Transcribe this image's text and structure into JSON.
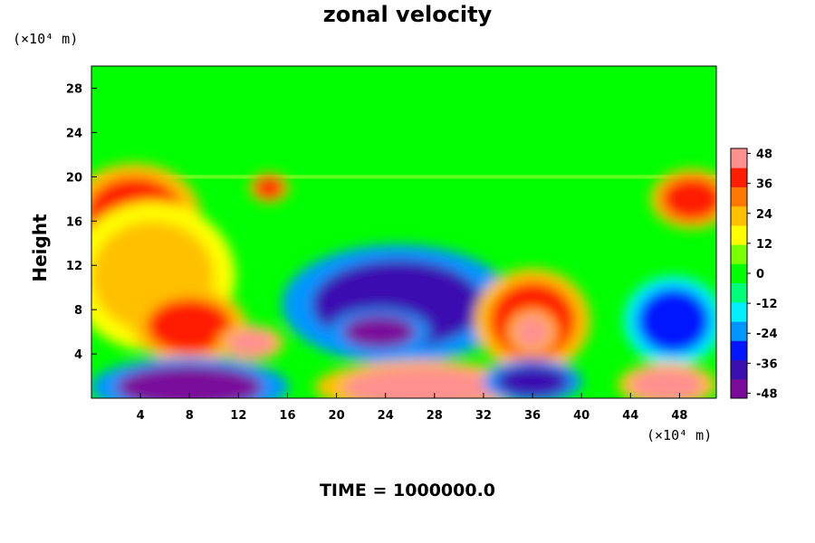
{
  "chart_data": {
    "type": "heatmap",
    "title": "zonal velocity",
    "ylabel": "Height",
    "y_unit": "(×10⁴ m)",
    "x_unit": "(×10⁴ m)",
    "footer": "TIME = 1000000.0",
    "xlim": [
      0,
      51
    ],
    "ylim": [
      0,
      30
    ],
    "x_ticks": [
      "4",
      "8",
      "12",
      "16",
      "20",
      "24",
      "28",
      "32",
      "36",
      "40",
      "44",
      "48"
    ],
    "x_tick_values": [
      4,
      8,
      12,
      16,
      20,
      24,
      28,
      32,
      36,
      40,
      44,
      48
    ],
    "y_ticks": [
      "4",
      "8",
      "12",
      "16",
      "20",
      "24",
      "28"
    ],
    "y_tick_values": [
      4,
      8,
      12,
      16,
      20,
      24,
      28
    ],
    "colorbar": {
      "ticks": [
        "48",
        "36",
        "24",
        "12",
        "0",
        "-12",
        "-24",
        "-36",
        "-48"
      ],
      "tick_values": [
        48,
        36,
        24,
        12,
        0,
        -12,
        -24,
        -36,
        -48
      ],
      "range": [
        -50,
        50
      ],
      "colors_low_to_high": [
        "#7a0a9a",
        "#3a10b0",
        "#0016ff",
        "#0096ff",
        "#00f0ff",
        "#00ff78",
        "#00ff00",
        "#78ff00",
        "#ffff00",
        "#ffc000",
        "#ff7800",
        "#ff1e00",
        "#ff9090"
      ]
    },
    "features": [
      {
        "kind": "ellipse",
        "cx": 3.5,
        "cy": 16.5,
        "rx": 4,
        "ry": 3.5,
        "value": 44
      },
      {
        "kind": "ellipse",
        "cx": 5,
        "cy": 11,
        "rx": 5,
        "ry": 5,
        "value": 28
      },
      {
        "kind": "ellipse",
        "cx": 8,
        "cy": 6.5,
        "rx": 3.5,
        "ry": 2.5,
        "value": 38
      },
      {
        "kind": "ellipse",
        "cx": 13,
        "cy": 5,
        "rx": 2,
        "ry": 1.2,
        "value": 48
      },
      {
        "kind": "ellipse",
        "cx": 14.5,
        "cy": 19,
        "rx": 1.2,
        "ry": 1,
        "value": 40
      },
      {
        "kind": "ellipse",
        "cx": 25,
        "cy": 8.5,
        "rx": 7,
        "ry": 4,
        "value": -38
      },
      {
        "kind": "ellipse",
        "cx": 23.5,
        "cy": 6,
        "rx": 3,
        "ry": 1.5,
        "value": -48
      },
      {
        "kind": "ellipse",
        "cx": 36,
        "cy": 7,
        "rx": 3.5,
        "ry": 3.5,
        "value": 40
      },
      {
        "kind": "ellipse",
        "cx": 36,
        "cy": 6,
        "rx": 1.5,
        "ry": 1.5,
        "value": 48
      },
      {
        "kind": "ellipse",
        "cx": 47.5,
        "cy": 7,
        "rx": 3,
        "ry": 3,
        "value": -36
      },
      {
        "kind": "ellipse",
        "cx": 49,
        "cy": 18,
        "rx": 2.5,
        "ry": 2,
        "value": 44
      },
      {
        "kind": "ellipse",
        "cx": 8,
        "cy": 1,
        "rx": 6,
        "ry": 2,
        "value": -46
      },
      {
        "kind": "ellipse",
        "cx": 27,
        "cy": 1,
        "rx": 6.5,
        "ry": 1.8,
        "value": 48
      },
      {
        "kind": "ellipse",
        "cx": 36,
        "cy": 1.5,
        "rx": 3,
        "ry": 1.5,
        "value": -42
      },
      {
        "kind": "ellipse",
        "cx": 47,
        "cy": 1.2,
        "rx": 3,
        "ry": 1.5,
        "value": 48
      }
    ]
  }
}
